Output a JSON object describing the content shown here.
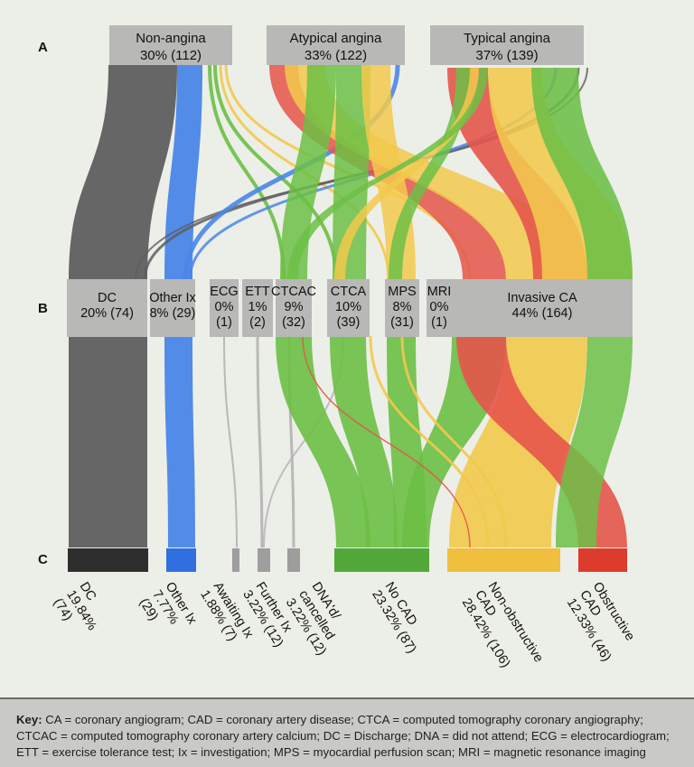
{
  "rows": {
    "a": "A",
    "b": "B",
    "c": "C"
  },
  "colors": {
    "non_angina_flow": "#5e5e5e",
    "other_ix_flow": "#4a86e8",
    "atypical_flow": "#f2c94c",
    "typical_red": "#e5554a",
    "green_flow": "#6cbf45",
    "box_gray": "#b8b8b6",
    "dc_out": "#2e2e2e",
    "other_out": "#2f6fe0",
    "no_cad_out": "#53a83a",
    "nonobs_out": "#f0bf3e",
    "obs_out": "#dd3b2b",
    "gray_out": "#9e9e9e"
  },
  "row_a": [
    {
      "key": "non_angina",
      "name": "Non-angina",
      "value": "30% (112)"
    },
    {
      "key": "atypical",
      "name": "Atypical angina",
      "value": "33% (122)"
    },
    {
      "key": "typical",
      "name": "Typical angina",
      "value": "37% (139)"
    }
  ],
  "row_b": [
    {
      "key": "dc",
      "lines": [
        "DC",
        "20% (74)"
      ]
    },
    {
      "key": "other",
      "lines": [
        "Other Ix",
        "8% (29)"
      ]
    },
    {
      "key": "ecg",
      "lines": [
        "ECG",
        "0%",
        "(1)"
      ]
    },
    {
      "key": "ett",
      "lines": [
        "ETT",
        "1%",
        "(2)"
      ]
    },
    {
      "key": "ctcac",
      "lines": [
        "CTCAC",
        "9%",
        "(32)"
      ]
    },
    {
      "key": "ctca",
      "lines": [
        "CTCA",
        "10%",
        "(39)"
      ]
    },
    {
      "key": "mps",
      "lines": [
        "MPS",
        "8%",
        "(31)"
      ]
    },
    {
      "key": "mri",
      "lines": [
        "MRI",
        "0%",
        "(1)"
      ]
    },
    {
      "key": "invasive",
      "lines": [
        "Invasive CA",
        "44% (164)"
      ]
    }
  ],
  "row_c": [
    {
      "key": "dc",
      "lines": [
        "DC",
        "19.84%",
        "(74)"
      ]
    },
    {
      "key": "other",
      "lines": [
        "Other Ix",
        "7.77%",
        "(29)"
      ]
    },
    {
      "key": "awaiting",
      "lines": [
        "Awaiting Ix",
        "1.88% (7)"
      ]
    },
    {
      "key": "further",
      "lines": [
        "Further Ix",
        "3.22% (12)"
      ]
    },
    {
      "key": "dna",
      "lines": [
        "DNA'd/",
        "cancelled",
        "3.22% (12)"
      ]
    },
    {
      "key": "nocad",
      "lines": [
        "No CAD",
        "23.32% (87)"
      ]
    },
    {
      "key": "nonobs",
      "lines": [
        "Non-obstructive",
        "CAD",
        "28.42% (106)"
      ]
    },
    {
      "key": "obs",
      "lines": [
        "Obstructive",
        "CAD",
        "12.33% (46)"
      ]
    }
  ],
  "key_text": {
    "title": "Key:",
    "line1": "CA = coronary angiogram; CAD = coronary artery disease; CTCA = computed tomography coronary angiography;",
    "line2": "CTCAC = computed tomography coronary artery calcium; DC = Discharge; DNA = did not attend; ECG = electrocardiogram;",
    "line3": "ETT = exercise tolerance test; Ix = investigation; MPS = myocardial perfusion scan; MRI = magnetic resonance imaging"
  }
}
